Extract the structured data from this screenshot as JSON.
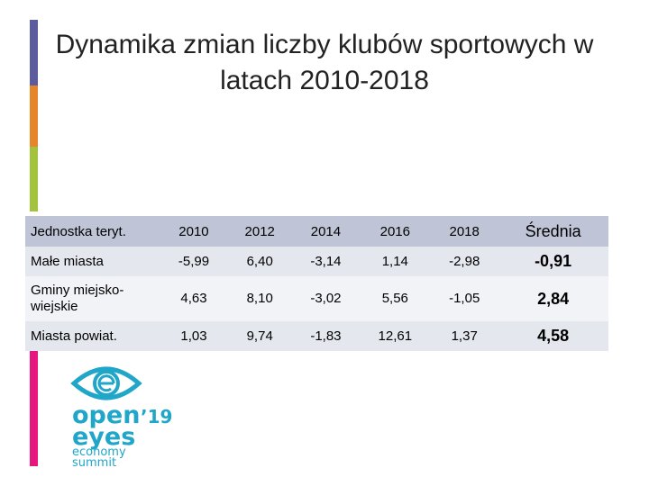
{
  "slide": {
    "title": "Dynamika zmian liczby klubów sportowych w latach 2010-2018",
    "colors": {
      "bar": [
        "#5b5b9e",
        "#e6862b",
        "#a3c23d",
        "#e6187f"
      ],
      "table_header": "#bfc4d6",
      "logo": "#1fa6c9"
    }
  },
  "table": {
    "headers": [
      "Jednostka teryt.",
      "2010",
      "2012",
      "2014",
      "2016",
      "2018",
      "Średnia"
    ],
    "rows": [
      {
        "name": "Małe miasta",
        "values": [
          "-5,99",
          "6,40",
          "-3,14",
          "1,14",
          "-2,98"
        ],
        "avg": "-0,91"
      },
      {
        "name": "Gminy miejsko-wiejskie",
        "values": [
          "4,63",
          "8,10",
          "-3,02",
          "5,56",
          "-1,05"
        ],
        "avg": "2,84"
      },
      {
        "name": "Miasta powiat.",
        "values": [
          "1,03",
          "9,74",
          "-1,83",
          "12,61",
          "1,37"
        ],
        "avg": "4,58"
      }
    ]
  },
  "logo": {
    "line1": "open",
    "year": "’19",
    "line2": "eyes",
    "line3": "economy",
    "line4": "summit"
  }
}
